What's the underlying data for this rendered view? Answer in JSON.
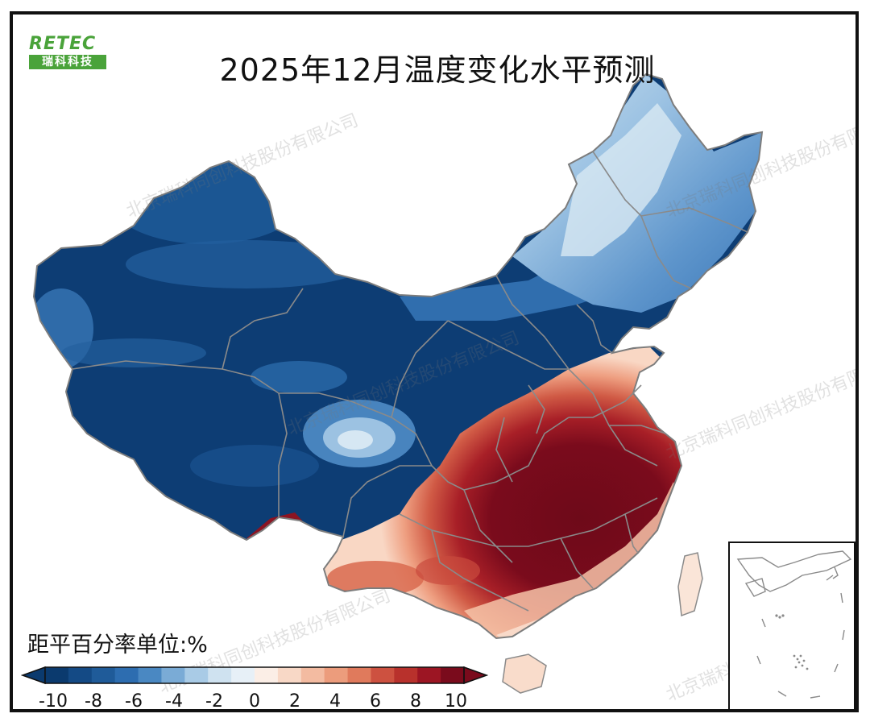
{
  "header": {
    "title": "2025年12月温度变化水平预测",
    "logo_text_top": "RETEC",
    "logo_text_bottom": "瑞科科技"
  },
  "legend": {
    "title": "距平百分率单位:%",
    "tick_labels": [
      "-10",
      "-8",
      "-6",
      "-4",
      "-2",
      "0",
      "2",
      "4",
      "6",
      "8",
      "10"
    ],
    "colors": [
      "#0b3a6e",
      "#144a85",
      "#1f5b99",
      "#2d6db0",
      "#4a88c2",
      "#7aabd6",
      "#a9cbe6",
      "#cfe2f0",
      "#e7f0f7",
      "#fbeee6",
      "#f8d8c6",
      "#f3bba1",
      "#ec9c7c",
      "#e07a5c",
      "#cd5140",
      "#b8312c",
      "#9c1523",
      "#7a0b1c"
    ]
  },
  "watermark": {
    "text": "北京瑞科同创科技股份有限公司"
  },
  "palette": {
    "cold_deep": "#0b3a6e",
    "cold_mid": "#2d6db0",
    "cold_light": "#a9cbe6",
    "warm_deep": "#6e0a19",
    "warm_mid": "#c23a35",
    "warm_light": "#f6c6ad",
    "border": "#8a8a8a"
  }
}
